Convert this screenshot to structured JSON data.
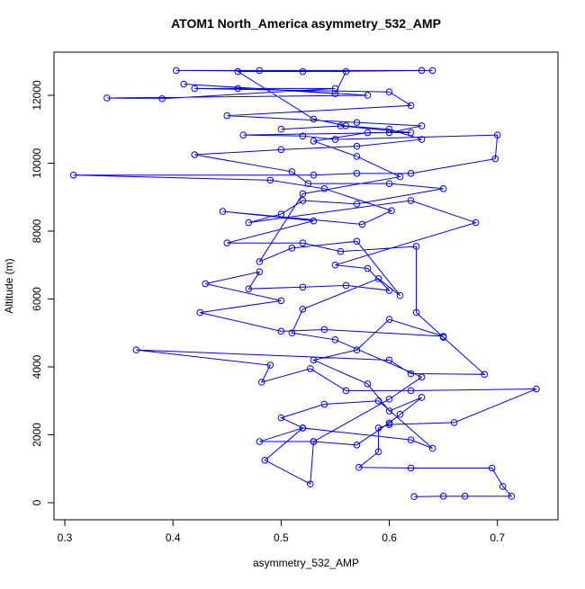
{
  "chart_data": {
    "type": "line",
    "title": "ATOM1 North_America asymmetry_532_AMP",
    "xlabel": "asymmetry_532_AMP",
    "ylabel": "Altitude (m)",
    "color": "#0000ff",
    "xlim": [
      0.29,
      0.756
    ],
    "ylim": [
      -503,
      13271
    ],
    "xticks": [
      0.3,
      0.4,
      0.5,
      0.6,
      0.7
    ],
    "yticks": [
      0,
      2000,
      4000,
      6000,
      8000,
      10000,
      12000
    ],
    "x": [
      0.623,
      0.65,
      0.67,
      0.713,
      0.705,
      0.695,
      0.62,
      0.572,
      0.59,
      0.59,
      0.6,
      0.66,
      0.736,
      0.62,
      0.56,
      0.527,
      0.482,
      0.49,
      0.366,
      0.6,
      0.62,
      0.688,
      0.65,
      0.625,
      0.625,
      0.555,
      0.52,
      0.45,
      0.53,
      0.446,
      0.575,
      0.602,
      0.54,
      0.49,
      0.308,
      0.53,
      0.57,
      0.62,
      0.698,
      0.7,
      0.55,
      0.52,
      0.465,
      0.6,
      0.63,
      0.57,
      0.45,
      0.62,
      0.6,
      0.42,
      0.46,
      0.55,
      0.39,
      0.339,
      0.58,
      0.41,
      0.55,
      0.56,
      0.403,
      0.48,
      0.63,
      0.64,
      0.52,
      0.46,
      0.53,
      0.56,
      0.6,
      0.63,
      0.57,
      0.5,
      0.42,
      0.51,
      0.525,
      0.6,
      0.65,
      0.57,
      0.52,
      0.5,
      0.47,
      0.62,
      0.68,
      0.55,
      0.58,
      0.6,
      0.56,
      0.52,
      0.47,
      0.48,
      0.43,
      0.5,
      0.425,
      0.5,
      0.54,
      0.65,
      0.6,
      0.57,
      0.53,
      0.58,
      0.6,
      0.63,
      0.61,
      0.6,
      0.57,
      0.53,
      0.48,
      0.52,
      0.5,
      0.54,
      0.59,
      0.64,
      0.62,
      0.52,
      0.485,
      0.527,
      0.53,
      0.6,
      0.63,
      0.55,
      0.51,
      0.52,
      0.59,
      0.61,
      0.57,
      0.51,
      0.48,
      0.52,
      0.61,
      0.57,
      0.53,
      0.58,
      0.62,
      0.555,
      0.5
    ],
    "values": [
      180,
      190,
      190,
      190,
      480,
      1020,
      1020,
      1040,
      1500,
      2200,
      2300,
      2360,
      3350,
      3300,
      3300,
      3950,
      3550,
      4050,
      4500,
      4200,
      3800,
      3780,
      4870,
      5600,
      7550,
      7400,
      7650,
      7650,
      8300,
      8580,
      8200,
      8600,
      9250,
      9500,
      9650,
      9650,
      9700,
      9700,
      10130,
      10830,
      10700,
      10800,
      10830,
      10900,
      11100,
      11200,
      11400,
      11700,
      12100,
      12200,
      12200,
      12200,
      11900,
      11920,
      12000,
      12330,
      12050,
      12700,
      12730,
      12730,
      12730,
      12730,
      12700,
      12700,
      11300,
      11100,
      11000,
      10700,
      10500,
      10400,
      10250,
      9750,
      9400,
      9400,
      9250,
      8800,
      8900,
      8500,
      8250,
      8900,
      8250,
      7000,
      6900,
      6250,
      6400,
      6350,
      6300,
      6800,
      6450,
      5950,
      5600,
      5050,
      5100,
      4900,
      5400,
      4500,
      4200,
      3500,
      2700,
      3100,
      2600,
      2350,
      1700,
      1800,
      1800,
      2200,
      2500,
      2900,
      3000,
      1600,
      1850,
      2200,
      1250,
      550,
      1800,
      3050,
      3700,
      4800,
      5000,
      5700,
      6600,
      6100,
      7700,
      7500,
      7100,
      9100,
      9600,
      10200,
      10650,
      10900,
      10900,
      11100,
      11000
    ]
  }
}
